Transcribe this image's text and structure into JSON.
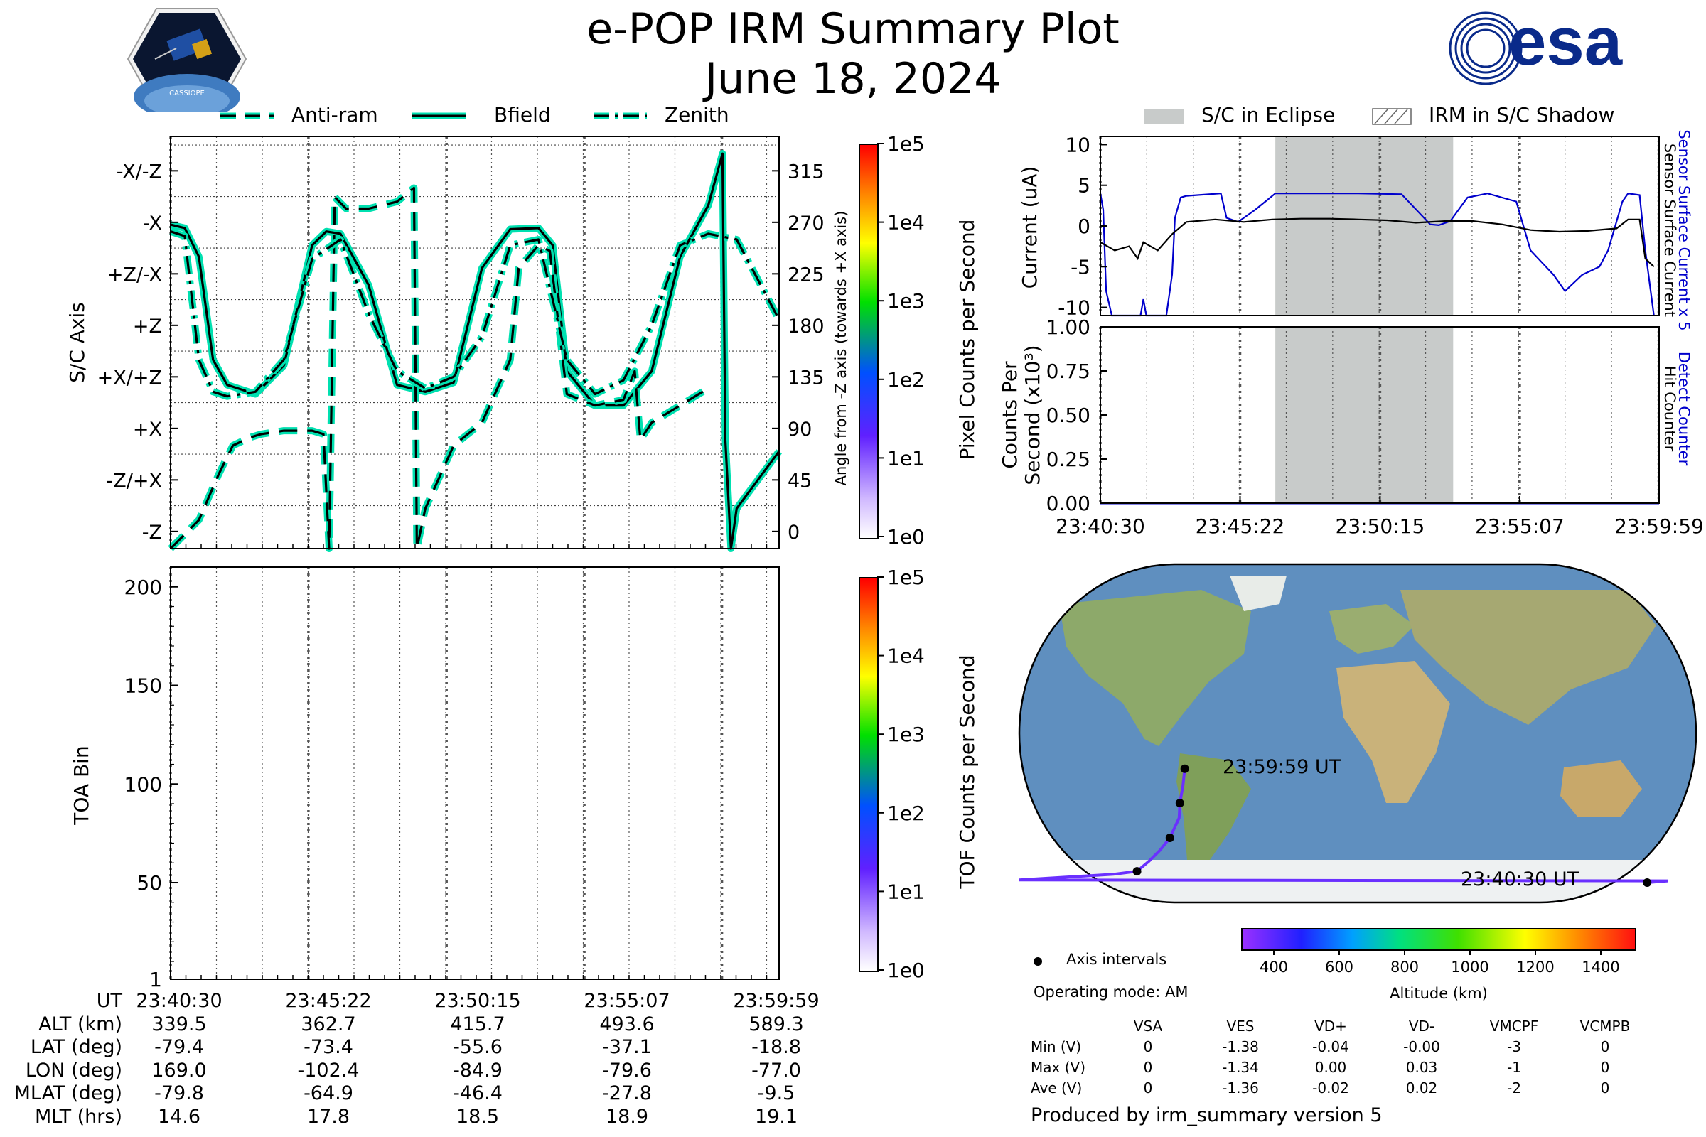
{
  "header": {
    "title": "e-POP IRM Summary Plot",
    "date": "June 18, 2024",
    "logo_left_text": "CASSIOPE",
    "logo_right_text": "esa"
  },
  "colors": {
    "trace": "#00e0b0",
    "eclipse": "#c8cbca",
    "sensor_current": "#0000cc",
    "detect_counter": "#0000cc"
  },
  "attitude_panel": {
    "legend": [
      "Anti-ram",
      "Bfield",
      "Zenith"
    ],
    "ylabel_left": "S/C Axis",
    "ylabel_right": "Angle from -Z axis (towards +X axis)",
    "left_ticks": [
      "-X/-Z",
      "-X",
      "+Z/-X",
      "+Z",
      "+X/+Z",
      "+X",
      "-Z/+X",
      "-Z"
    ],
    "right_ticks": [
      "315",
      "270",
      "225",
      "180",
      "135",
      "90",
      "45",
      "0"
    ],
    "colorbar": {
      "label": "Pixel Counts per Second",
      "ticks": [
        "1e5",
        "1e4",
        "1e3",
        "1e2",
        "1e1",
        "1e0"
      ]
    }
  },
  "toa_panel": {
    "ylabel": "TOA Bin",
    "yticks": [
      "200",
      "150",
      "100",
      "50",
      "1"
    ],
    "colorbar": {
      "label": "TOF Counts per Second",
      "ticks": [
        "1e5",
        "1e4",
        "1e3",
        "1e2",
        "1e1",
        "1e0"
      ]
    }
  },
  "ephemeris": {
    "row_labels": [
      "UT",
      "ALT (km)",
      "LAT (deg)",
      "LON (deg)",
      "MLAT (deg)",
      "MLT (hrs)"
    ],
    "columns": [
      [
        "23:40:30",
        "339.5",
        "-79.4",
        "169.0",
        "-79.8",
        "14.6"
      ],
      [
        "23:45:22",
        "362.7",
        "-73.4",
        "-102.4",
        "-64.9",
        "17.8"
      ],
      [
        "23:50:15",
        "415.7",
        "-55.6",
        "-84.9",
        "-46.4",
        "18.5"
      ],
      [
        "23:55:07",
        "493.6",
        "-37.1",
        "-79.6",
        "-27.8",
        "18.9"
      ],
      [
        "23:59:59",
        "589.3",
        "-18.8",
        "-77.0",
        "-9.5",
        "19.1"
      ]
    ]
  },
  "current_panel": {
    "legend": [
      "S/C in Eclipse",
      "IRM in S/C Shadow"
    ],
    "ylabel": "Current (uA)",
    "yticks": [
      "10",
      "5",
      "0",
      "-5",
      "-10"
    ],
    "right_label_blue": "Sensor Surface Current x 5",
    "right_label_black": "Sensor Surface Current"
  },
  "counts_panel": {
    "ylabel_line1": "Counts Per",
    "ylabel_line2": "Second (x10³)",
    "yticks": [
      "1.00",
      "0.75",
      "0.50",
      "0.25",
      "0.00"
    ],
    "right_label_blue": "Detect Counter",
    "right_label_black": "Hit Counter",
    "xticks": [
      "23:40:30",
      "23:45:22",
      "23:50:15",
      "23:55:07",
      "23:59:59"
    ]
  },
  "map_panel": {
    "start_label": "23:40:30 UT",
    "end_label": "23:59:59 UT",
    "altitude_colorbar": {
      "label": "Altitude (km)",
      "ticks": [
        "400",
        "600",
        "800",
        "1000",
        "1200",
        "1400"
      ]
    },
    "legend_axis_intervals": "Axis intervals",
    "operating_mode": "Operating mode: AM"
  },
  "voltage_table": {
    "headers": [
      "VSA",
      "VES",
      "VD+",
      "VD-",
      "VMCPF",
      "VCMPB"
    ],
    "rows": [
      {
        "label": "Min (V)",
        "values": [
          "0",
          "-1.38",
          "-0.04",
          "-0.00",
          "-3",
          "0"
        ]
      },
      {
        "label": "Max (V)",
        "values": [
          "0",
          "-1.34",
          "0.00",
          "0.03",
          "-1",
          "0"
        ]
      },
      {
        "label": "Ave (V)",
        "values": [
          "0",
          "-1.36",
          "-0.02",
          "0.02",
          "-2",
          "0"
        ]
      }
    ]
  },
  "footer": {
    "produced_by": "Produced by irm_summary version 5"
  },
  "chart_data": [
    {
      "type": "line",
      "title": "",
      "xlabel": "UT",
      "ylabel": "Angle from -Z axis (towards +X axis)",
      "ylim": [
        -15,
        345
      ],
      "x_unit": "minutes after 23:40:30",
      "series": [
        {
          "name": "Bfield",
          "style": "solid",
          "x": [
            0,
            0.5,
            1,
            1.5,
            2,
            3,
            4,
            5,
            5.5,
            6,
            7,
            8,
            9,
            10,
            11,
            12,
            13,
            13.5,
            14,
            15,
            16,
            17,
            18,
            19,
            19.5,
            19.6,
            19.8,
            20,
            21.5
          ],
          "y": [
            268,
            265,
            240,
            150,
            128,
            120,
            145,
            250,
            262,
            260,
            215,
            128,
            122,
            130,
            230,
            264,
            265,
            250,
            140,
            110,
            110,
            140,
            240,
            285,
            330,
            80,
            -15,
            20,
            70
          ]
        },
        {
          "name": "Anti-ram",
          "style": "dashed",
          "x": [
            0,
            1,
            1.7,
            2.2,
            2.8,
            3.2,
            4,
            5,
            5.4,
            5.6,
            5.8,
            6.2,
            7,
            8,
            8.6,
            8.7,
            9,
            10,
            11,
            12,
            12.3,
            13,
            13.4,
            14,
            15,
            16,
            16.4,
            16.6,
            17,
            18,
            19
          ],
          "y": [
            -15,
            10,
            50,
            75,
            82,
            85,
            88,
            88,
            85,
            -15,
            292,
            282,
            282,
            288,
            300,
            -15,
            20,
            75,
            95,
            150,
            230,
            250,
            245,
            120,
            110,
            115,
            140,
            80,
            95,
            110,
            125
          ]
        },
        {
          "name": "Zenith",
          "style": "dashdot",
          "x": [
            0,
            0.5,
            1,
            1.5,
            2,
            3,
            4,
            5,
            6,
            7,
            8,
            9,
            10,
            11,
            12,
            13,
            14,
            15,
            16,
            17,
            18,
            19,
            20,
            21.5
          ],
          "y": [
            262,
            258,
            150,
            122,
            118,
            122,
            150,
            238,
            255,
            190,
            140,
            125,
            135,
            170,
            250,
            255,
            150,
            120,
            132,
            180,
            250,
            260,
            255,
            185
          ]
        }
      ]
    },
    {
      "type": "heatmap",
      "xlabel": "UT",
      "ylabel": "TOA Bin",
      "ylim": [
        1,
        210
      ],
      "values": []
    },
    {
      "type": "line",
      "xlabel": "",
      "ylabel": "Current (uA)",
      "ylim": [
        -11,
        11
      ],
      "x_unit": "minutes after 23:40:30",
      "shaded_eclipse": [
        6.1,
        12.3
      ],
      "series": [
        {
          "name": "Sensor Surface Current x 5",
          "color": "#0000cc",
          "x": [
            0,
            0.1,
            0.2,
            0.4,
            1.4,
            1.5,
            1.6,
            2.3,
            2.5,
            2.6,
            2.8,
            3.0,
            4.2,
            4.4,
            4.8,
            5.4,
            6.1,
            7.5,
            9.0,
            10.5,
            11.5,
            11.8,
            12.2,
            12.8,
            13.5,
            14.5,
            15,
            15.8,
            16.2,
            16.8,
            17.4,
            17.7,
            18.2,
            18.4,
            18.8,
            19.0,
            19.3
          ],
          "y": [
            4,
            2,
            -8,
            -11,
            -11,
            -9,
            -11,
            -11,
            -6,
            1,
            3.5,
            3.7,
            4,
            1.0,
            0.5,
            2,
            4,
            4,
            4,
            3.9,
            0.2,
            0.1,
            0.6,
            3.5,
            4,
            3,
            -3,
            -6,
            -8,
            -6,
            -5,
            -3,
            3,
            4.0,
            3.8,
            -3,
            -11
          ]
        },
        {
          "name": "Sensor Surface Current",
          "color": "#000000",
          "x": [
            0,
            0.5,
            1,
            1.3,
            1.5,
            2,
            2.5,
            3,
            4,
            5,
            6,
            7,
            8,
            9,
            10,
            11,
            12,
            13,
            14,
            15,
            16,
            17,
            18,
            18.4,
            18.8,
            19.0,
            19.3
          ],
          "y": [
            -2,
            -3,
            -2.5,
            -4,
            -2,
            -3,
            -1,
            0.5,
            0.8,
            0.5,
            0.8,
            0.9,
            0.9,
            0.8,
            0.7,
            0.4,
            0.6,
            0.6,
            0.2,
            -0.5,
            -0.7,
            -0.6,
            -0.3,
            0.8,
            0.8,
            -4,
            -5
          ]
        }
      ]
    },
    {
      "type": "line",
      "xlabel": "UT",
      "ylabel": "Counts Per Second (x10³)",
      "ylim": [
        0,
        1.0
      ],
      "x": [
        "23:40:30",
        "23:45:22",
        "23:50:15",
        "23:55:07",
        "23:59:59"
      ],
      "series": [
        {
          "name": "Detect Counter",
          "values": [
            0,
            0,
            0,
            0,
            0
          ]
        },
        {
          "name": "Hit Counter",
          "values": [
            0,
            0,
            0,
            0,
            0
          ]
        }
      ]
    },
    {
      "type": "line",
      "title": "",
      "xlabel": "",
      "ylabel": "",
      "x_unit": "longitude (deg)",
      "y_unit": "latitude (deg)",
      "series": [
        {
          "name": "",
          "x": [
            169.0,
            180,
            -165,
            -140,
            -115,
            -102.4,
            -96,
            -90,
            -84.9,
            -80,
            -79.6,
            -78,
            -77.0
          ],
          "y": [
            -79.4,
            -78.5,
            -78,
            -76.5,
            -75,
            -73.4,
            -68,
            -62,
            -55.6,
            -45,
            -37.1,
            -28,
            -18.8
          ]
        }
      ]
    }
  ]
}
